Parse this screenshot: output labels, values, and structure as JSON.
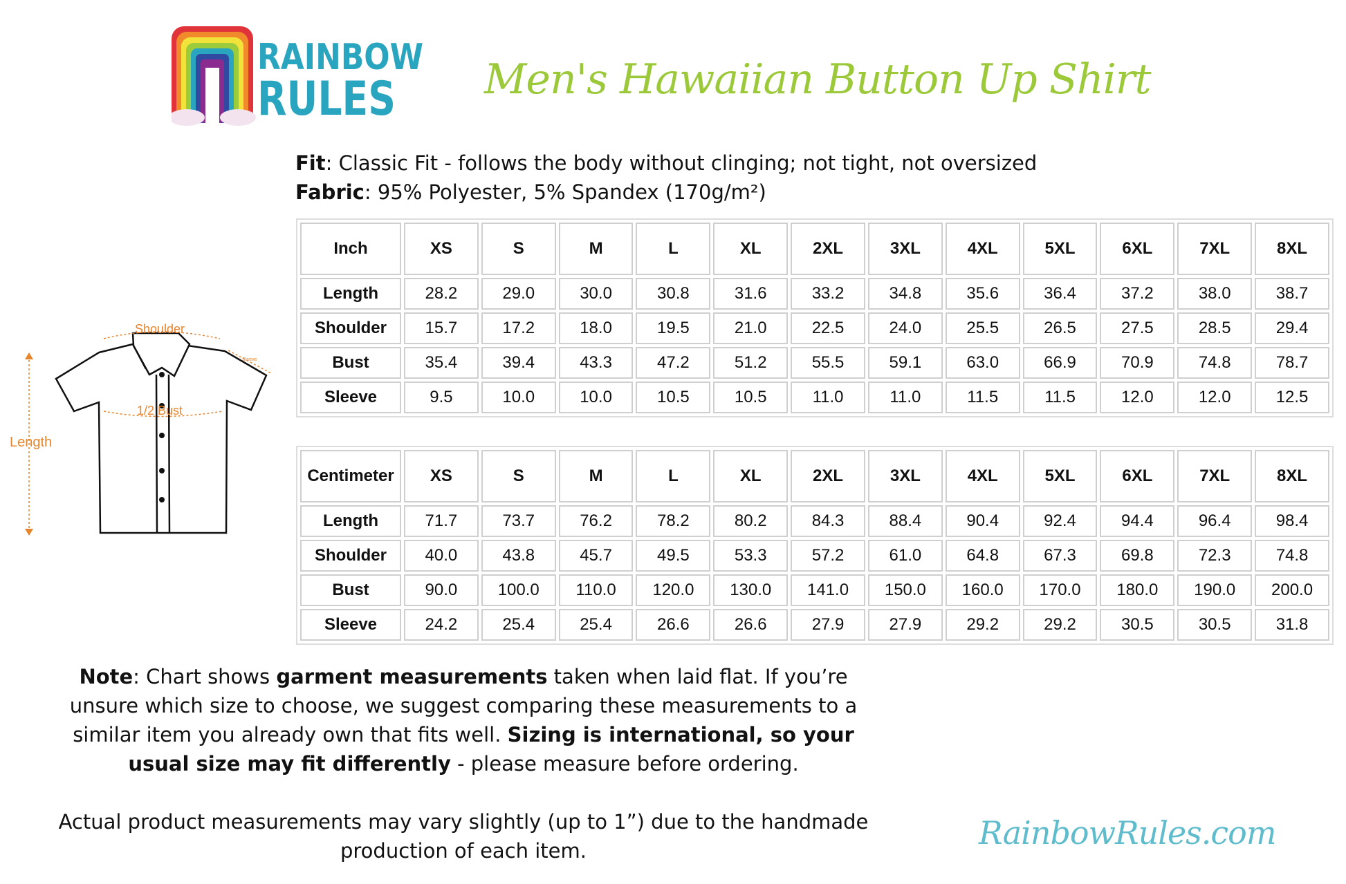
{
  "brand": {
    "logo_text": "RAINBOW RULES",
    "website": "RainbowRules.com",
    "colors": {
      "title_green": "#9cc93a",
      "brand_teal": "#2aa5c0",
      "diagram_orange": "#e8842c"
    }
  },
  "title": "Men's Hawaiian Button Up Shirt",
  "specs": {
    "fit_label": "Fit",
    "fit_value": ": Classic Fit - follows the body without clinging; not tight, not oversized",
    "fabric_label": "Fabric",
    "fabric_value": ": 95% Polyester, 5% Spandex (170g/m²)"
  },
  "diagram": {
    "shoulder": "Shoulder",
    "sleeve": "Sleeve",
    "bust": "1/2 Bust",
    "length": "Length"
  },
  "sizes": [
    "XS",
    "S",
    "M",
    "L",
    "XL",
    "2XL",
    "3XL",
    "4XL",
    "5XL",
    "6XL",
    "7XL",
    "8XL"
  ],
  "inch_table": {
    "unit": "Inch",
    "rows": [
      {
        "label": "Length",
        "values": [
          "28.2",
          "29.0",
          "30.0",
          "30.8",
          "31.6",
          "33.2",
          "34.8",
          "35.6",
          "36.4",
          "37.2",
          "38.0",
          "38.7"
        ]
      },
      {
        "label": "Shoulder",
        "values": [
          "15.7",
          "17.2",
          "18.0",
          "19.5",
          "21.0",
          "22.5",
          "24.0",
          "25.5",
          "26.5",
          "27.5",
          "28.5",
          "29.4"
        ]
      },
      {
        "label": "Bust",
        "values": [
          "35.4",
          "39.4",
          "43.3",
          "47.2",
          "51.2",
          "55.5",
          "59.1",
          "63.0",
          "66.9",
          "70.9",
          "74.8",
          "78.7"
        ]
      },
      {
        "label": "Sleeve",
        "values": [
          "9.5",
          "10.0",
          "10.0",
          "10.5",
          "10.5",
          "11.0",
          "11.0",
          "11.5",
          "11.5",
          "12.0",
          "12.0",
          "12.5"
        ]
      }
    ]
  },
  "cm_table": {
    "unit": "Centimeter",
    "rows": [
      {
        "label": "Length",
        "values": [
          "71.7",
          "73.7",
          "76.2",
          "78.2",
          "80.2",
          "84.3",
          "88.4",
          "90.4",
          "92.4",
          "94.4",
          "96.4",
          "98.4"
        ]
      },
      {
        "label": "Shoulder",
        "values": [
          "40.0",
          "43.8",
          "45.7",
          "49.5",
          "53.3",
          "57.2",
          "61.0",
          "64.8",
          "67.3",
          "69.8",
          "72.3",
          "74.8"
        ]
      },
      {
        "label": "Bust",
        "values": [
          "90.0",
          "100.0",
          "110.0",
          "120.0",
          "130.0",
          "141.0",
          "150.0",
          "160.0",
          "170.0",
          "180.0",
          "190.0",
          "200.0"
        ]
      },
      {
        "label": "Sleeve",
        "values": [
          "24.2",
          "25.4",
          "25.4",
          "26.6",
          "26.6",
          "27.9",
          "27.9",
          "29.2",
          "29.2",
          "30.5",
          "30.5",
          "31.8"
        ]
      }
    ]
  },
  "note": {
    "label": "Note",
    "p1": ": Chart shows ",
    "b1": "garment measurements",
    "p2": " taken when laid flat. If you’re unsure which size to choose, we suggest comparing these measurements to a similar item you already own that fits well. ",
    "b2": "Sizing is international, so your usual size may fit differently",
    "p3": " - please measure before ordering."
  },
  "disclaimer": "Actual product measurements may vary slightly (up to 1”) due to the handmade production of each item."
}
